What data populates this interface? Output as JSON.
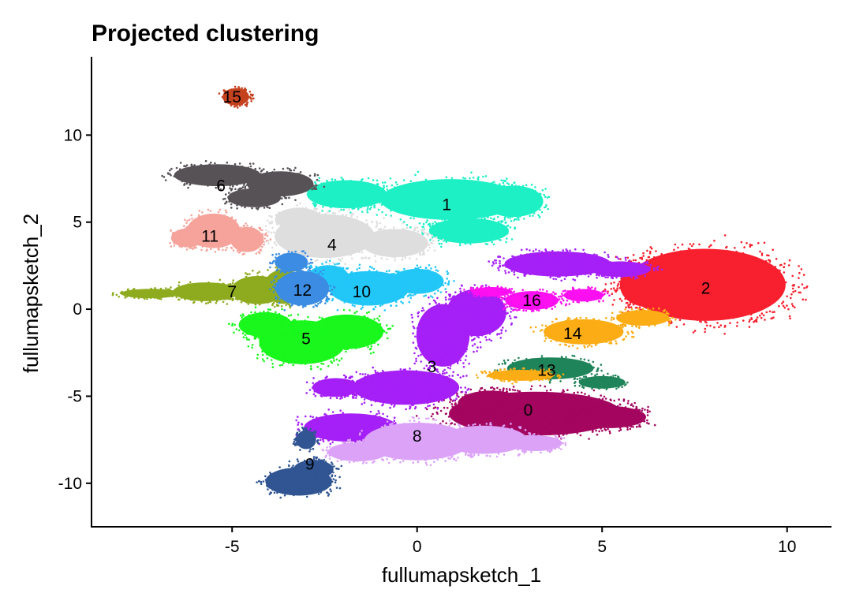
{
  "chart_data": {
    "type": "scatter",
    "title": "Projected clustering",
    "xlabel": "fullumapsketch_1",
    "ylabel": "fullumapsketch_2",
    "xlim": [
      -8.8,
      11.2
    ],
    "ylim": [
      -12.5,
      14.5
    ],
    "x_ticks": [
      -5,
      0,
      5,
      10
    ],
    "x_tick_labels": [
      "-5",
      "0",
      "5",
      "10"
    ],
    "y_ticks": [
      -10,
      -5,
      0,
      5,
      10
    ],
    "y_tick_labels": [
      "-10",
      "-5",
      "0",
      "5",
      "10"
    ],
    "grid": false,
    "legend": "none",
    "clusters": [
      {
        "label": "0",
        "color": "#a3055f",
        "label_x": 3.0,
        "label_y": -5.8,
        "blobs": [
          [
            3.2,
            -6.0,
            2.6,
            1.4
          ],
          [
            5.2,
            -6.2,
            1.1,
            0.7
          ],
          [
            2.0,
            -5.4,
            1.0,
            0.8
          ]
        ]
      },
      {
        "label": "1",
        "color": "#1ef0c6",
        "label_x": 0.8,
        "label_y": 6.0,
        "blobs": [
          [
            0.9,
            6.3,
            2.1,
            1.3
          ],
          [
            -1.9,
            6.6,
            1.2,
            0.9
          ],
          [
            2.6,
            6.2,
            0.9,
            1.0
          ],
          [
            1.4,
            4.5,
            1.2,
            0.8
          ]
        ]
      },
      {
        "label": "2",
        "color": "#f8202e",
        "label_x": 7.8,
        "label_y": 1.2,
        "blobs": [
          [
            7.8,
            1.4,
            2.4,
            2.3
          ],
          [
            6.2,
            1.4,
            0.8,
            1.4
          ]
        ]
      },
      {
        "label": "3",
        "color": "#a51ff7",
        "label_x": 0.4,
        "label_y": -3.3,
        "blobs": [
          [
            0.7,
            -1.5,
            0.8,
            2.0
          ],
          [
            1.6,
            -0.2,
            0.9,
            1.5
          ],
          [
            -0.3,
            -4.5,
            1.6,
            1.1
          ],
          [
            -1.8,
            -6.8,
            1.4,
            0.9
          ],
          [
            3.8,
            2.6,
            1.6,
            0.8
          ],
          [
            5.5,
            2.3,
            0.9,
            0.5
          ],
          [
            -2.2,
            -4.5,
            0.7,
            0.6
          ]
        ]
      },
      {
        "label": "4",
        "color": "#dedede",
        "label_x": -2.3,
        "label_y": 3.7,
        "blobs": [
          [
            -2.5,
            4.2,
            1.5,
            1.4
          ],
          [
            -0.6,
            3.8,
            1.0,
            0.9
          ],
          [
            -3.2,
            5.2,
            0.7,
            0.7
          ]
        ]
      },
      {
        "label": "5",
        "color": "#19f71c",
        "label_x": -3.0,
        "label_y": -1.7,
        "blobs": [
          [
            -3.1,
            -1.9,
            1.3,
            1.4
          ],
          [
            -1.9,
            -1.3,
            1.1,
            1.1
          ],
          [
            -4.1,
            -0.9,
            0.8,
            0.8
          ]
        ]
      },
      {
        "label": "6",
        "color": "#575256",
        "label_x": -5.3,
        "label_y": 7.1,
        "blobs": [
          [
            -5.4,
            7.7,
            1.3,
            0.7
          ],
          [
            -3.7,
            7.2,
            1.0,
            0.8
          ],
          [
            -4.4,
            6.4,
            0.8,
            0.6
          ]
        ]
      },
      {
        "label": "7",
        "color": "#8eab1f",
        "label_x": -5.0,
        "label_y": 1.0,
        "blobs": [
          [
            -7.2,
            0.9,
            0.9,
            0.3
          ],
          [
            -5.7,
            1.0,
            1.0,
            0.6
          ],
          [
            -4.3,
            1.1,
            0.8,
            0.9
          ],
          [
            -3.6,
            1.3,
            0.6,
            1.1
          ]
        ]
      },
      {
        "label": "8",
        "color": "#dba2f8",
        "label_x": 0.0,
        "label_y": -7.3,
        "blobs": [
          [
            0.0,
            -7.6,
            1.6,
            1.2
          ],
          [
            1.8,
            -7.5,
            1.3,
            0.9
          ],
          [
            -1.6,
            -8.2,
            0.9,
            0.6
          ],
          [
            3.2,
            -7.7,
            0.8,
            0.5
          ]
        ]
      },
      {
        "label": "9",
        "color": "#305592",
        "label_x": -2.9,
        "label_y": -8.9,
        "blobs": [
          [
            -3.2,
            -9.9,
            1.0,
            0.9
          ],
          [
            -2.8,
            -9.2,
            0.6,
            0.6
          ],
          [
            -3.0,
            -7.5,
            0.3,
            0.6
          ]
        ]
      },
      {
        "label": "10",
        "color": "#22c7f8",
        "label_x": -1.5,
        "label_y": 1.0,
        "blobs": [
          [
            -1.3,
            1.2,
            1.2,
            1.1
          ],
          [
            0.0,
            1.6,
            0.8,
            0.8
          ],
          [
            -2.4,
            1.9,
            0.6,
            0.7
          ]
        ]
      },
      {
        "label": "11",
        "color": "#f5a39b",
        "label_x": -5.6,
        "label_y": 4.2,
        "blobs": [
          [
            -5.5,
            4.5,
            0.8,
            1.1
          ],
          [
            -6.2,
            4.1,
            0.5,
            0.6
          ],
          [
            -4.6,
            4.0,
            0.5,
            0.8
          ]
        ]
      },
      {
        "label": "12",
        "color": "#3b8ce2",
        "label_x": -3.1,
        "label_y": 1.1,
        "blobs": [
          [
            -3.1,
            1.2,
            0.8,
            1.1
          ],
          [
            -3.4,
            2.7,
            0.5,
            0.6
          ]
        ]
      },
      {
        "label": "13",
        "color": "#20845a",
        "label_x": 3.5,
        "label_y": -3.5,
        "blobs": [
          [
            3.6,
            -3.4,
            1.3,
            0.7
          ],
          [
            5.0,
            -4.2,
            0.7,
            0.4
          ]
        ]
      },
      {
        "label": "14",
        "color": "#fcac14",
        "label_x": 4.2,
        "label_y": -1.4,
        "blobs": [
          [
            4.5,
            -1.3,
            1.2,
            0.8
          ],
          [
            6.1,
            -0.5,
            0.8,
            0.5
          ],
          [
            2.8,
            -3.8,
            1.0,
            0.35
          ]
        ]
      },
      {
        "label": "16",
        "color": "#fc0ff1",
        "label_x": 3.1,
        "label_y": 0.5,
        "blobs": [
          [
            3.1,
            0.5,
            0.8,
            0.6
          ],
          [
            4.5,
            0.8,
            0.6,
            0.4
          ],
          [
            2.0,
            1.0,
            0.6,
            0.3
          ]
        ]
      },
      {
        "label": "15",
        "color": "#c5421f",
        "label_x": -5.0,
        "label_y": 12.2,
        "blobs": [
          [
            -4.9,
            12.2,
            0.4,
            0.55
          ]
        ]
      }
    ]
  }
}
